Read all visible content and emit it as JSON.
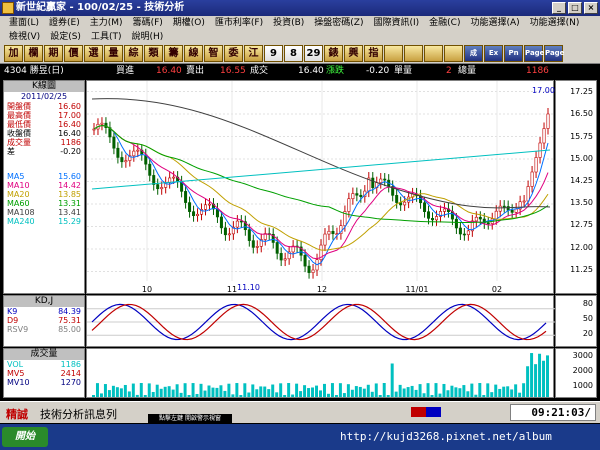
{
  "window": {
    "title": "新世紀贏家 - 100/02/25 - 技術分析"
  },
  "menu": {
    "row1": [
      "畫面(L)",
      "證券(E)",
      "主力(M)",
      "籌碼(F)",
      "期權(O)",
      "匯市利率(F)",
      "投資(B)",
      "操盤密碼(Z)",
      "國際資訊(I)",
      "金融(C)",
      "功能選擇(A)",
      "功能選擇(N)"
    ],
    "row2": [
      "檢視(V)",
      "設定(S)",
      "工具(T)",
      "說明(H)"
    ]
  },
  "toolbar": {
    "buttons": [
      "加",
      "欄",
      "期",
      "價",
      "選",
      "量",
      "綜",
      "類",
      "籌",
      "線",
      "智",
      "委",
      "江",
      "9",
      "8",
      "29",
      "錶",
      "興",
      "指",
      "",
      "",
      "",
      "",
      "成",
      "Ex",
      "Pn",
      "Page",
      "Page"
    ]
  },
  "info": {
    "stock": "4304 勝昱(日)",
    "buy_label": "買進",
    "buy_val": "16.40",
    "sell_label": "賣出",
    "sell_val": "16.55",
    "trade_label": "成交",
    "trade_val": "16.40",
    "change_label": "漲跌",
    "change_val": "-0.20",
    "unit_label": "單量",
    "unit_val": "2",
    "vol_label": "總量",
    "vol_val": "1186"
  },
  "kpanel": {
    "header": "K線圖",
    "date": "2011/02/25",
    "rows": [
      {
        "label": "開盤價",
        "value": "16.60",
        "color": "#c00000"
      },
      {
        "label": "最高價",
        "value": "17.00",
        "color": "#c00000"
      },
      {
        "label": "最低價",
        "value": "16.40",
        "color": "#c00000"
      },
      {
        "label": "收盤價",
        "value": "16.40",
        "color": "#000000"
      },
      {
        "label": "成交量",
        "value": "1186",
        "color": "#c00000"
      },
      {
        "label": "差",
        "value": "-0.20",
        "color": "#000000"
      }
    ],
    "ma": [
      {
        "label": "MA5",
        "value": "15.60",
        "color": "#0070ff"
      },
      {
        "label": "MA10",
        "value": "14.42",
        "color": "#e00080"
      },
      {
        "label": "MA20",
        "value": "13.85",
        "color": "#c0a000"
      },
      {
        "label": "MA60",
        "value": "13.31",
        "color": "#00a000"
      },
      {
        "label": "MA108",
        "value": "13.41",
        "color": "#404040"
      },
      {
        "label": "MA240",
        "value": "15.29",
        "color": "#00c0c0"
      }
    ]
  },
  "kdpanel": {
    "header": "KD,J",
    "rows": [
      {
        "label": "K9",
        "value": "84.39",
        "color": "#0000c0"
      },
      {
        "label": "D9",
        "value": "75.31",
        "color": "#c00000"
      },
      {
        "label": "RSV9",
        "value": "85.00",
        "color": "#808080"
      }
    ],
    "yticks": [
      "80",
      "50",
      "20"
    ]
  },
  "volpanel": {
    "header": "成交量",
    "rows": [
      {
        "label": "VOL",
        "value": "1186",
        "color": "#00c0c0"
      },
      {
        "label": "MV5",
        "value": "2414",
        "color": "#c00000"
      },
      {
        "label": "MV10",
        "value": "1270",
        "color": "#000080"
      }
    ],
    "yticks": [
      "3000",
      "2000",
      "1000"
    ]
  },
  "chart_data": {
    "type": "candlestick",
    "yticks": [
      "17.25",
      "16.50",
      "15.75",
      "15.00",
      "14.25",
      "13.50",
      "12.75",
      "12.00",
      "11.25"
    ],
    "ylim": [
      11.0,
      17.4
    ],
    "xlabels": [
      "10",
      "11",
      "12",
      "11/01",
      "02"
    ],
    "annotations": {
      "high": "17.00",
      "low": "11.10"
    }
  },
  "status": {
    "label": "精誠",
    "title": "技術分析訊息列",
    "time": "09:21:03/"
  },
  "watermark": "http://kujd3268.pixnet.net/album",
  "colors": {
    "up": "#c00000",
    "down": "#006000",
    "bg": "#ffffff"
  }
}
